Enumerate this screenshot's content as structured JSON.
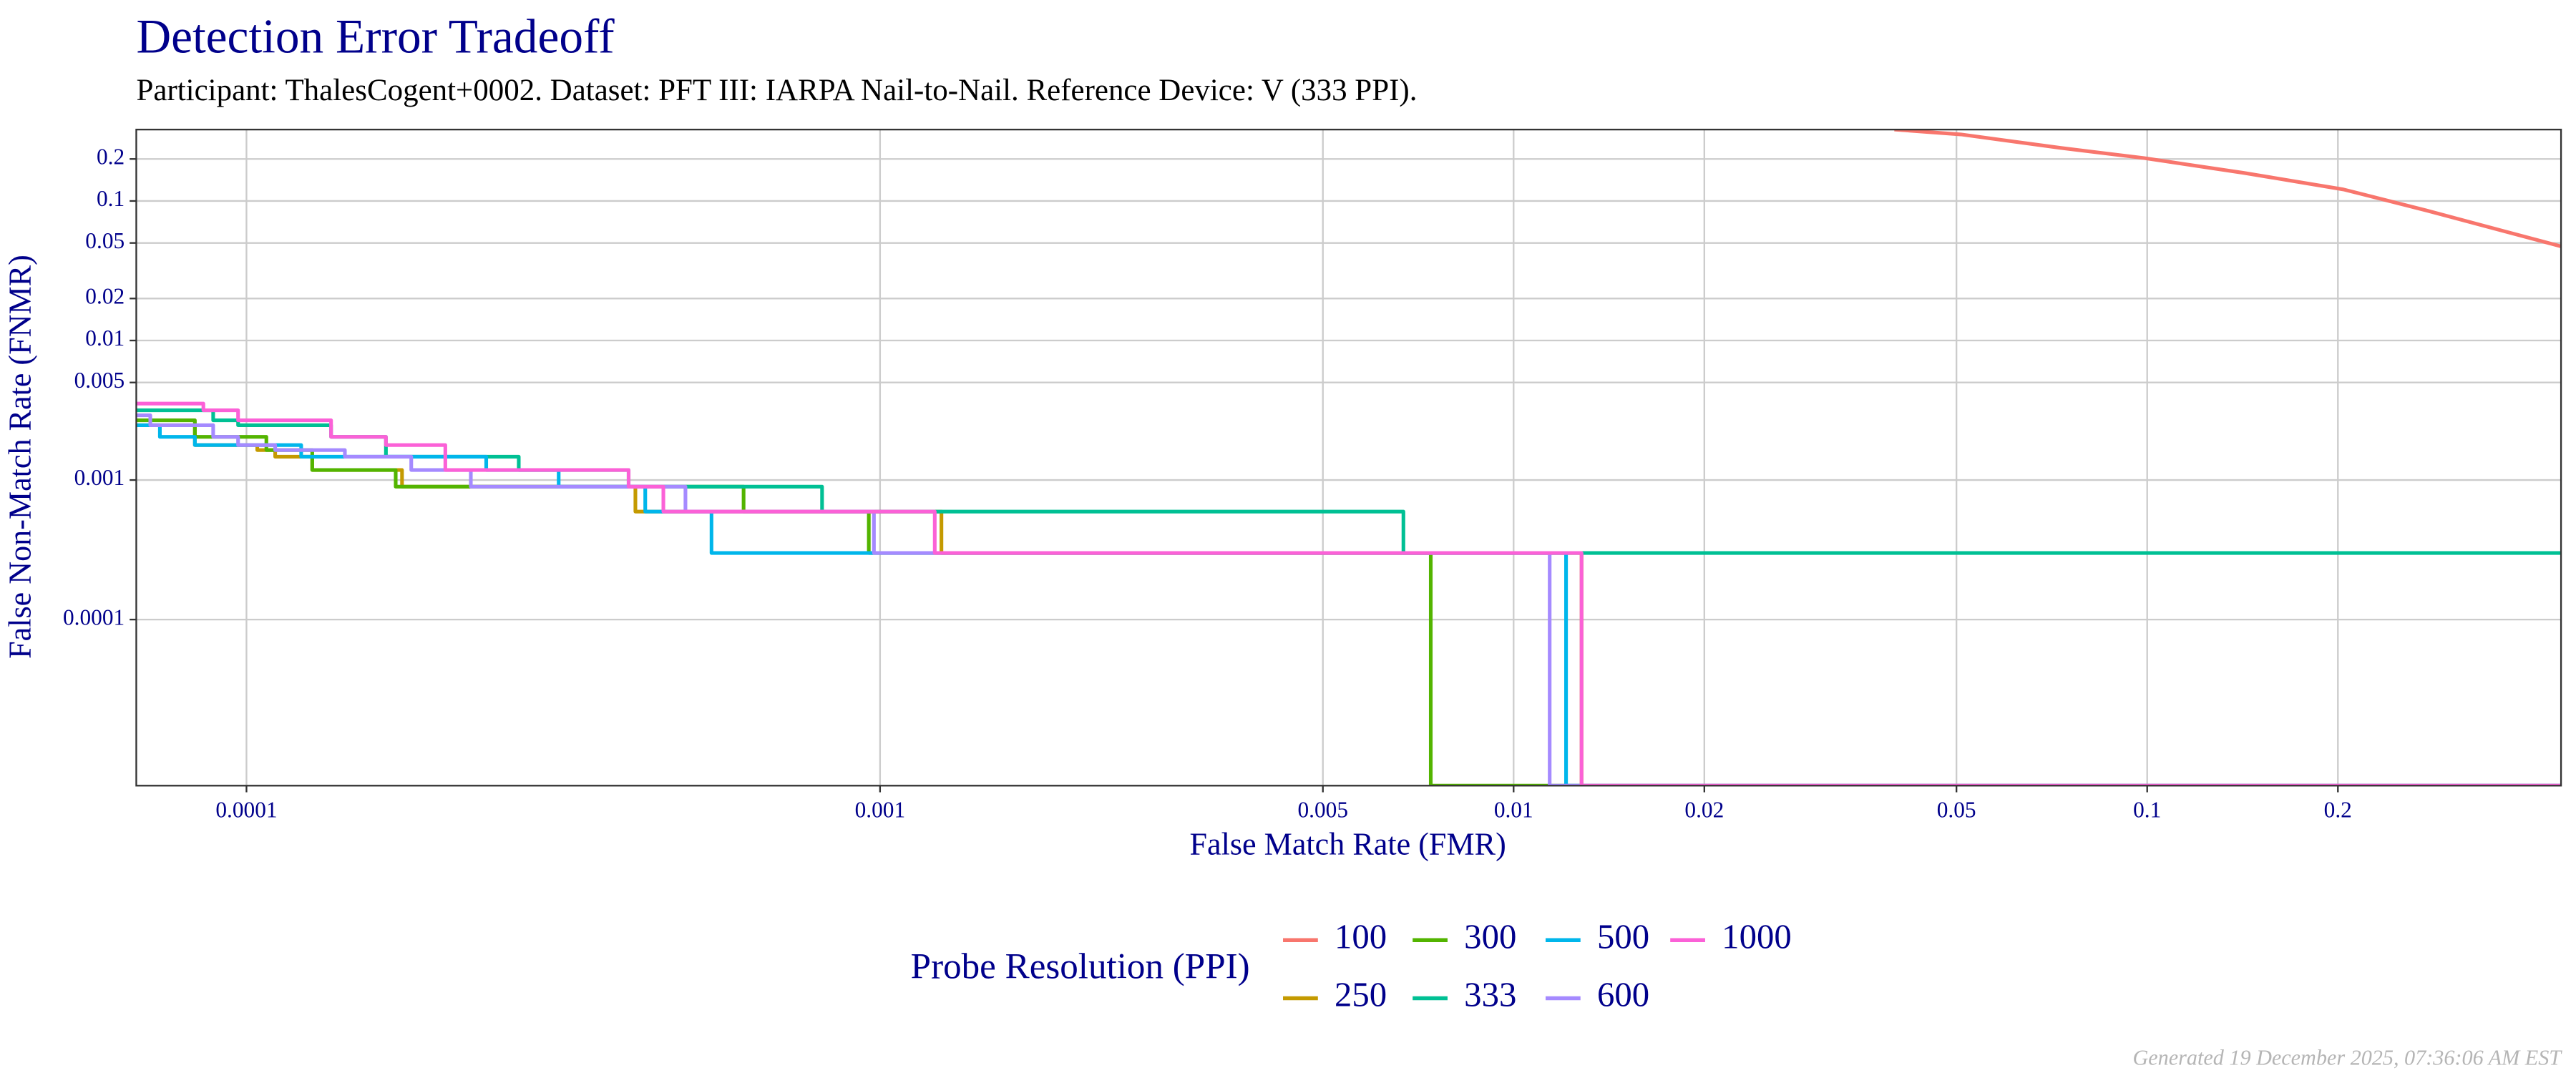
{
  "chart_data": {
    "type": "step-line",
    "title": "Detection Error Tradeoff",
    "subtitle": "Participant: ThalesCogent+0002. Dataset: PFT III: IARPA Nail-to-Nail. Reference Device: V (333 PPI).",
    "x_label": "False Match Rate (FMR)",
    "y_label": "False Non-Match Rate (FNMR)",
    "legend_title": "Probe Resolution (PPI)",
    "footer": "Generated 19 December 2025, 07:36:06 AM EST",
    "x_log": true,
    "y_log": true,
    "grid": true,
    "legend_position": "bottom",
    "xlim": [
      6.7e-05,
      0.45
    ],
    "ylim": [
      6.45e-06,
      0.325
    ],
    "xticks": [
      0.0001,
      0.001,
      0.005,
      0.01,
      0.02,
      0.05,
      0.1,
      0.2
    ],
    "yticks": [
      0.0001,
      0.001,
      0.005,
      0.01,
      0.02,
      0.05,
      0.1,
      0.2
    ],
    "series": [
      {
        "name": "100",
        "color": "#F8766D",
        "x": [
          0.0399,
          0.0508,
          0.0731,
          0.0989,
          0.142,
          0.204,
          0.276,
          0.373,
          0.45
        ],
        "values": [
          0.325,
          0.3,
          0.24,
          0.203,
          0.159,
          0.121,
          0.0855,
          0.0593,
          0.0473
        ]
      },
      {
        "name": "250",
        "color": "#C49A00",
        "x": [
          6.7e-05,
          8.29e-05,
          8.29e-05,
          0.000104,
          0.000104,
          0.000111,
          0.000111,
          0.000127,
          0.000127,
          0.000176,
          0.000176,
          0.000411,
          0.000411,
          0.00125,
          0.00125,
          0.0128,
          0.0128,
          0.45
        ],
        "values": [
          0.00247,
          0.00247,
          0.00178,
          0.00178,
          0.00164,
          0.00164,
          0.00147,
          0.00147,
          0.00118,
          0.00118,
          0.000896,
          0.000896,
          0.000594,
          0.000594,
          0.0003,
          0.0003,
          6.45e-06,
          6.45e-06
        ]
      },
      {
        "name": "300",
        "color": "#53B400",
        "x": [
          6.7e-05,
          8.29e-05,
          8.29e-05,
          0.0001075,
          0.0001075,
          0.000127,
          0.000127,
          0.000172,
          0.000172,
          0.000609,
          0.000609,
          0.00096,
          0.00096,
          0.0074,
          0.0074,
          0.45
        ],
        "values": [
          0.00268,
          0.00268,
          0.00204,
          0.00204,
          0.00164,
          0.00164,
          0.00118,
          0.00118,
          0.000896,
          0.000896,
          0.000594,
          0.000594,
          0.0003,
          0.0003,
          6.45e-06,
          6.45e-06
        ]
      },
      {
        "name": "333",
        "color": "#00C094",
        "x": [
          6.7e-05,
          8.86e-05,
          8.86e-05,
          9.7e-05,
          9.7e-05,
          0.000136,
          0.000136,
          0.000166,
          0.000166,
          0.000269,
          0.000269,
          0.000401,
          0.000401,
          0.00081,
          0.00081,
          0.0067,
          0.0067,
          0.45
        ],
        "values": [
          0.00316,
          0.00316,
          0.00268,
          0.00268,
          0.00247,
          0.00247,
          0.00204,
          0.00204,
          0.00147,
          0.00147,
          0.00118,
          0.00118,
          0.000896,
          0.000896,
          0.000594,
          0.000594,
          0.0003,
          0.0003
        ]
      },
      {
        "name": "500",
        "color": "#00B6EB",
        "x": [
          6.7e-05,
          7.3e-05,
          7.3e-05,
          8.29e-05,
          8.29e-05,
          0.000122,
          0.000122,
          0.000239,
          0.000239,
          0.000311,
          0.000311,
          0.000426,
          0.000426,
          0.000542,
          0.000542,
          0.0121,
          0.0121,
          0.45
        ],
        "values": [
          0.00247,
          0.00247,
          0.00204,
          0.00204,
          0.00178,
          0.00178,
          0.00147,
          0.00147,
          0.00118,
          0.00118,
          0.000896,
          0.000896,
          0.000594,
          0.000594,
          0.0003,
          0.0003,
          6.45e-06,
          6.45e-06
        ]
      },
      {
        "name": "600",
        "color": "#A58AFF",
        "x": [
          6.7e-05,
          7.05e-05,
          7.05e-05,
          8.86e-05,
          8.86e-05,
          9.7e-05,
          9.7e-05,
          0.000111,
          0.000111,
          0.000143,
          0.000143,
          0.000182,
          0.000182,
          0.000226,
          0.000226,
          0.000493,
          0.000493,
          0.000978,
          0.000978,
          0.0114,
          0.0114,
          0.45
        ],
        "values": [
          0.00291,
          0.00291,
          0.00247,
          0.00247,
          0.00204,
          0.00204,
          0.00178,
          0.00178,
          0.00164,
          0.00164,
          0.00147,
          0.00147,
          0.00118,
          0.00118,
          0.000896,
          0.000896,
          0.000594,
          0.000594,
          0.0003,
          0.0003,
          6.45e-06,
          6.45e-06
        ]
      },
      {
        "name": "1000",
        "color": "#FB61D7",
        "x": [
          6.7e-05,
          8.55e-05,
          8.55e-05,
          9.7e-05,
          9.7e-05,
          0.000136,
          0.000136,
          0.000166,
          0.000166,
          0.000206,
          0.000206,
          0.000401,
          0.000401,
          0.000455,
          0.000455,
          0.00122,
          0.00122,
          0.0128,
          0.0128,
          0.45
        ],
        "values": [
          0.00353,
          0.00353,
          0.00316,
          0.00316,
          0.00268,
          0.00268,
          0.00204,
          0.00204,
          0.00178,
          0.00178,
          0.00118,
          0.00118,
          0.000896,
          0.000896,
          0.000594,
          0.000594,
          0.0003,
          0.0003,
          6.45e-06,
          6.45e-06
        ]
      }
    ]
  }
}
